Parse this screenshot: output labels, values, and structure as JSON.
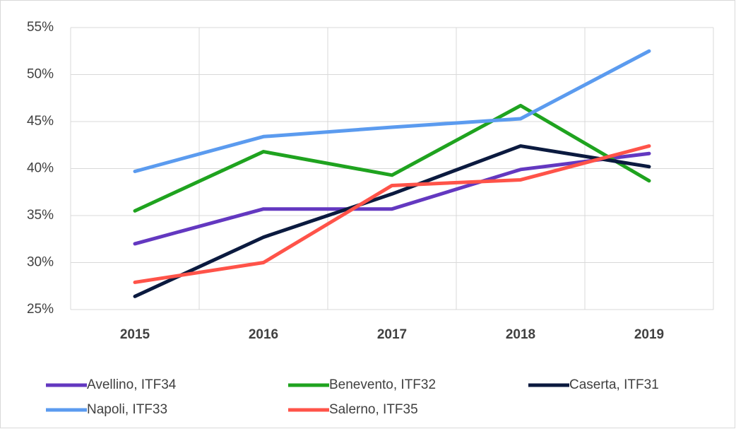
{
  "chart_data": {
    "type": "line",
    "categories": [
      "2015",
      "2016",
      "2017",
      "2018",
      "2019"
    ],
    "series": [
      {
        "name": "Avellino, ITF34",
        "color": "#6338c0",
        "values": [
          32.0,
          35.7,
          35.7,
          39.9,
          41.6
        ]
      },
      {
        "name": "Benevento, ITF32",
        "color": "#1fa31f",
        "values": [
          35.5,
          41.8,
          39.3,
          46.7,
          38.7
        ]
      },
      {
        "name": "Caserta, ITF31",
        "color": "#0b1a3f",
        "values": [
          26.4,
          32.7,
          37.3,
          42.4,
          40.2
        ]
      },
      {
        "name": "Napoli, ITF33",
        "color": "#5b9bef",
        "values": [
          39.7,
          43.4,
          44.4,
          45.3,
          52.5
        ]
      },
      {
        "name": "Salerno, ITF35",
        "color": "#ff5349",
        "values": [
          27.9,
          30.0,
          38.2,
          38.8,
          42.4
        ]
      }
    ],
    "ylim": [
      25,
      55
    ],
    "yticks": [
      {
        "value": 25,
        "label": "25%"
      },
      {
        "value": 30,
        "label": "30%"
      },
      {
        "value": 35,
        "label": "35%"
      },
      {
        "value": 40,
        "label": "40%"
      },
      {
        "value": 45,
        "label": "45%"
      },
      {
        "value": 50,
        "label": "50%"
      },
      {
        "value": 55,
        "label": "55%"
      }
    ],
    "grid": true,
    "legend": "bottom"
  }
}
